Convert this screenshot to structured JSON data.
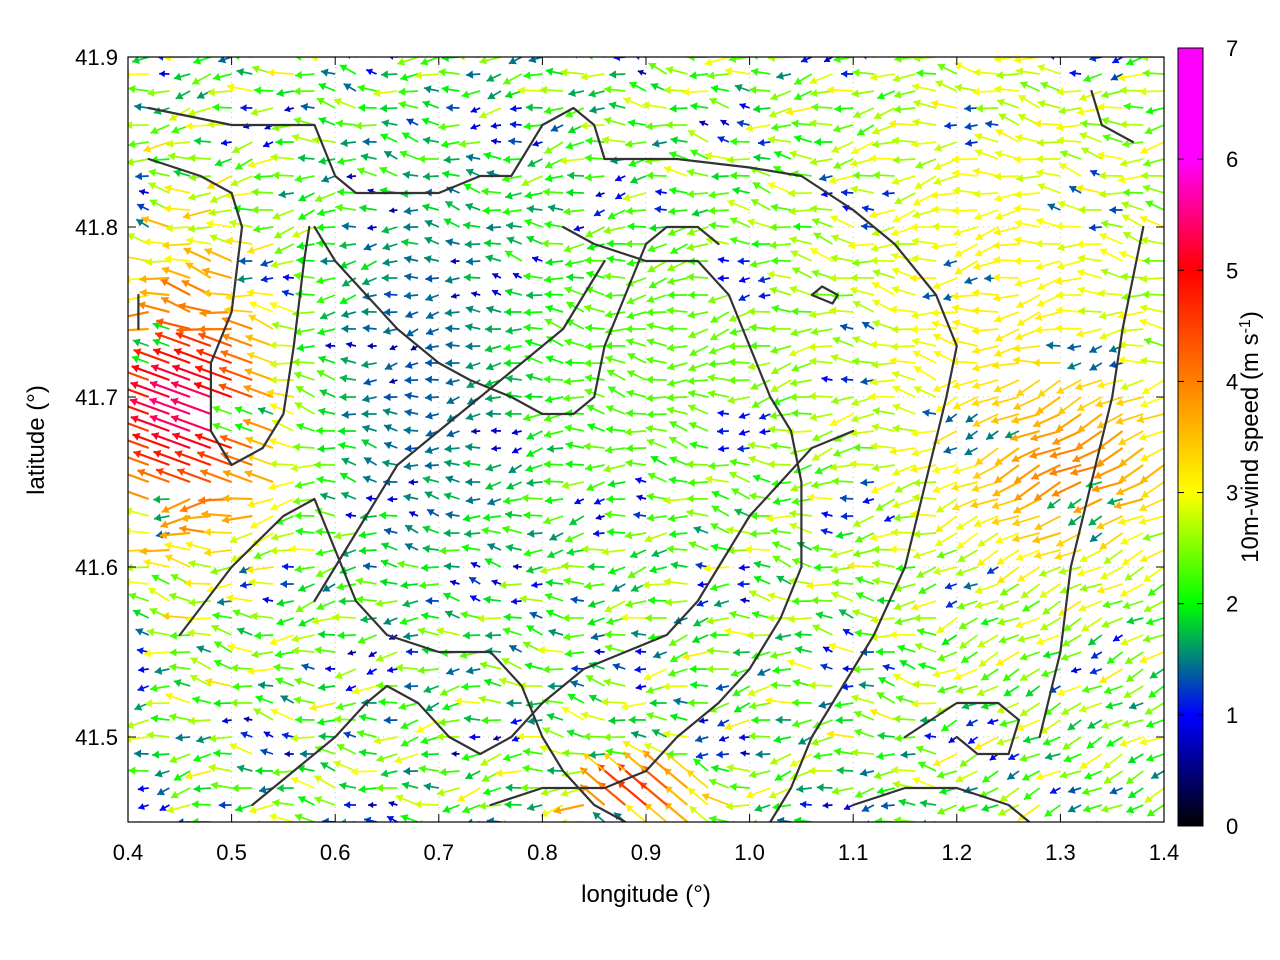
{
  "chart_data": {
    "type": "vector-field",
    "xlabel": "longitude (°)",
    "ylabel": "latitude (°)",
    "xlim": [
      0.4,
      1.4
    ],
    "ylim": [
      41.45,
      41.9
    ],
    "xticks": [
      "0.4",
      "0.5",
      "0.6",
      "0.7",
      "0.8",
      "0.9",
      "1.0",
      "1.1",
      "1.2",
      "1.3",
      "1.4"
    ],
    "yticks": [
      "41.5",
      "41.6",
      "41.7",
      "41.8",
      "41.9"
    ],
    "grid": true,
    "colorbar": {
      "label": "10m-wind speed (m s-1)",
      "label_main": "10m-wind speed (m s",
      "label_sup": "-1",
      "label_close": ")",
      "range": [
        0,
        7
      ],
      "ticks": [
        "0",
        "1",
        "2",
        "3",
        "4",
        "5",
        "6",
        "7"
      ],
      "colors": [
        "#000000",
        "#0000ff",
        "#00ff00",
        "#ffff00",
        "#ff8000",
        "#ff0000",
        "#ff00ff"
      ]
    },
    "wind_field": {
      "x_start": 0.4,
      "x_step": 0.02,
      "nx": 51,
      "y_start": 41.45,
      "y_step": 0.01,
      "ny": 46,
      "dominant_direction": "westward",
      "zones": [
        {
          "name": "strong westerly flow",
          "lon": [
            0.4,
            0.56
          ],
          "lat": [
            41.62,
            41.78
          ],
          "speed": 4.6
        },
        {
          "name": "maximum",
          "lon": [
            0.42,
            0.52
          ],
          "lat": [
            41.66,
            41.72
          ],
          "speed": 5.6
        },
        {
          "name": "calm central basin",
          "lon": [
            0.6,
            0.8
          ],
          "lat": [
            41.62,
            41.82
          ],
          "speed": 1.2
        },
        {
          "name": "moderate plain",
          "lon": [
            0.8,
            1.05
          ],
          "lat": [
            41.65,
            41.8
          ],
          "speed": 2.3
        },
        {
          "name": "eastern upland",
          "lon": [
            1.1,
            1.4
          ],
          "lat": [
            41.6,
            41.9
          ],
          "speed": 3.1
        },
        {
          "name": "south-east gusts",
          "lon": [
            1.25,
            1.4
          ],
          "lat": [
            41.62,
            41.7
          ],
          "speed": 4.0
        },
        {
          "name": "southern edge gusts",
          "lon": [
            0.85,
            0.95
          ],
          "lat": [
            41.45,
            41.48
          ],
          "speed": 4.8
        }
      ]
    },
    "contours": [
      [
        [
          0.42,
          41.84
        ],
        [
          0.47,
          41.83
        ],
        [
          0.5,
          41.82
        ],
        [
          0.51,
          41.8
        ],
        [
          0.5,
          41.75
        ],
        [
          0.48,
          41.72
        ],
        [
          0.48,
          41.68
        ],
        [
          0.5,
          41.66
        ],
        [
          0.53,
          41.67
        ],
        [
          0.55,
          41.69
        ],
        [
          0.56,
          41.73
        ],
        [
          0.57,
          41.78
        ],
        [
          0.575,
          41.8
        ]
      ],
      [
        [
          0.42,
          41.87
        ],
        [
          0.5,
          41.86
        ],
        [
          0.55,
          41.86
        ],
        [
          0.58,
          41.86
        ],
        [
          0.6,
          41.83
        ],
        [
          0.62,
          41.82
        ],
        [
          0.66,
          41.82
        ],
        [
          0.7,
          41.82
        ],
        [
          0.74,
          41.83
        ],
        [
          0.77,
          41.83
        ],
        [
          0.8,
          41.86
        ],
        [
          0.83,
          41.87
        ],
        [
          0.85,
          41.86
        ],
        [
          0.86,
          41.84
        ],
        [
          0.88,
          41.84
        ],
        [
          0.93,
          41.84
        ],
        [
          1.0,
          41.835
        ],
        [
          1.05,
          41.83
        ],
        [
          1.1,
          41.81
        ],
        [
          1.14,
          41.79
        ],
        [
          1.18,
          41.76
        ],
        [
          1.2,
          41.73
        ],
        [
          1.19,
          41.7
        ],
        [
          1.17,
          41.65
        ],
        [
          1.15,
          41.6
        ],
        [
          1.12,
          41.56
        ],
        [
          1.09,
          41.53
        ],
        [
          1.06,
          41.5
        ],
        [
          1.04,
          41.47
        ],
        [
          1.02,
          41.45
        ]
      ],
      [
        [
          0.58,
          41.8
        ],
        [
          0.6,
          41.78
        ],
        [
          0.63,
          41.76
        ],
        [
          0.66,
          41.74
        ],
        [
          0.7,
          41.72
        ],
        [
          0.73,
          41.71
        ],
        [
          0.77,
          41.7
        ],
        [
          0.8,
          41.69
        ],
        [
          0.83,
          41.69
        ],
        [
          0.85,
          41.7
        ],
        [
          0.86,
          41.73
        ],
        [
          0.88,
          41.76
        ],
        [
          0.9,
          41.79
        ],
        [
          0.92,
          41.8
        ],
        [
          0.95,
          41.8
        ],
        [
          0.97,
          41.79
        ]
      ],
      [
        [
          0.82,
          41.8
        ],
        [
          0.85,
          41.79
        ],
        [
          0.9,
          41.78
        ],
        [
          0.95,
          41.78
        ],
        [
          0.98,
          41.76
        ],
        [
          1.0,
          41.73
        ],
        [
          1.02,
          41.7
        ],
        [
          1.04,
          41.68
        ],
        [
          1.05,
          41.65
        ],
        [
          1.05,
          41.6
        ],
        [
          1.03,
          41.57
        ],
        [
          1.0,
          41.54
        ],
        [
          0.97,
          41.52
        ],
        [
          0.93,
          41.5
        ],
        [
          0.9,
          41.48
        ],
        [
          0.86,
          41.47
        ],
        [
          0.8,
          41.47
        ],
        [
          0.75,
          41.46
        ]
      ],
      [
        [
          0.58,
          41.58
        ],
        [
          0.6,
          41.6
        ],
        [
          0.63,
          41.63
        ],
        [
          0.66,
          41.66
        ],
        [
          0.7,
          41.68
        ],
        [
          0.74,
          41.7
        ],
        [
          0.78,
          41.72
        ],
        [
          0.82,
          41.74
        ],
        [
          0.84,
          41.76
        ],
        [
          0.86,
          41.78
        ]
      ],
      [
        [
          0.45,
          41.56
        ],
        [
          0.5,
          41.6
        ],
        [
          0.55,
          41.63
        ],
        [
          0.58,
          41.64
        ],
        [
          0.6,
          41.61
        ],
        [
          0.62,
          41.58
        ],
        [
          0.65,
          41.56
        ],
        [
          0.7,
          41.55
        ],
        [
          0.75,
          41.55
        ],
        [
          0.78,
          41.53
        ],
        [
          0.8,
          41.5
        ],
        [
          0.82,
          41.48
        ],
        [
          0.85,
          41.46
        ],
        [
          0.88,
          41.45
        ]
      ],
      [
        [
          0.52,
          41.46
        ],
        [
          0.56,
          41.48
        ],
        [
          0.6,
          41.5
        ],
        [
          0.63,
          41.52
        ],
        [
          0.65,
          41.53
        ],
        [
          0.68,
          41.52
        ],
        [
          0.71,
          41.5
        ],
        [
          0.74,
          41.49
        ],
        [
          0.77,
          41.5
        ],
        [
          0.8,
          41.52
        ],
        [
          0.84,
          41.54
        ],
        [
          0.88,
          41.55
        ],
        [
          0.92,
          41.56
        ],
        [
          0.95,
          41.58
        ],
        [
          0.97,
          41.6
        ],
        [
          1.0,
          41.63
        ],
        [
          1.03,
          41.65
        ],
        [
          1.06,
          41.67
        ],
        [
          1.1,
          41.68
        ]
      ],
      [
        [
          1.15,
          41.5
        ],
        [
          1.2,
          41.52
        ],
        [
          1.24,
          41.52
        ],
        [
          1.26,
          41.51
        ],
        [
          1.25,
          41.49
        ],
        [
          1.22,
          41.49
        ],
        [
          1.2,
          41.5
        ]
      ],
      [
        [
          1.1,
          41.46
        ],
        [
          1.15,
          41.47
        ],
        [
          1.2,
          41.47
        ],
        [
          1.25,
          41.46
        ],
        [
          1.27,
          41.45
        ]
      ],
      [
        [
          1.28,
          41.5
        ],
        [
          1.3,
          41.55
        ],
        [
          1.31,
          41.6
        ],
        [
          1.33,
          41.65
        ],
        [
          1.35,
          41.7
        ],
        [
          1.36,
          41.74
        ],
        [
          1.37,
          41.77
        ],
        [
          1.38,
          41.8
        ]
      ],
      [
        [
          1.06,
          41.76
        ],
        [
          1.08,
          41.755
        ],
        [
          1.085,
          41.76
        ],
        [
          1.07,
          41.765
        ],
        [
          1.06,
          41.76
        ]
      ],
      [
        [
          0.41,
          41.76
        ],
        [
          0.41,
          41.74
        ]
      ],
      [
        [
          1.33,
          41.88
        ],
        [
          1.34,
          41.86
        ],
        [
          1.37,
          41.85
        ]
      ]
    ]
  }
}
